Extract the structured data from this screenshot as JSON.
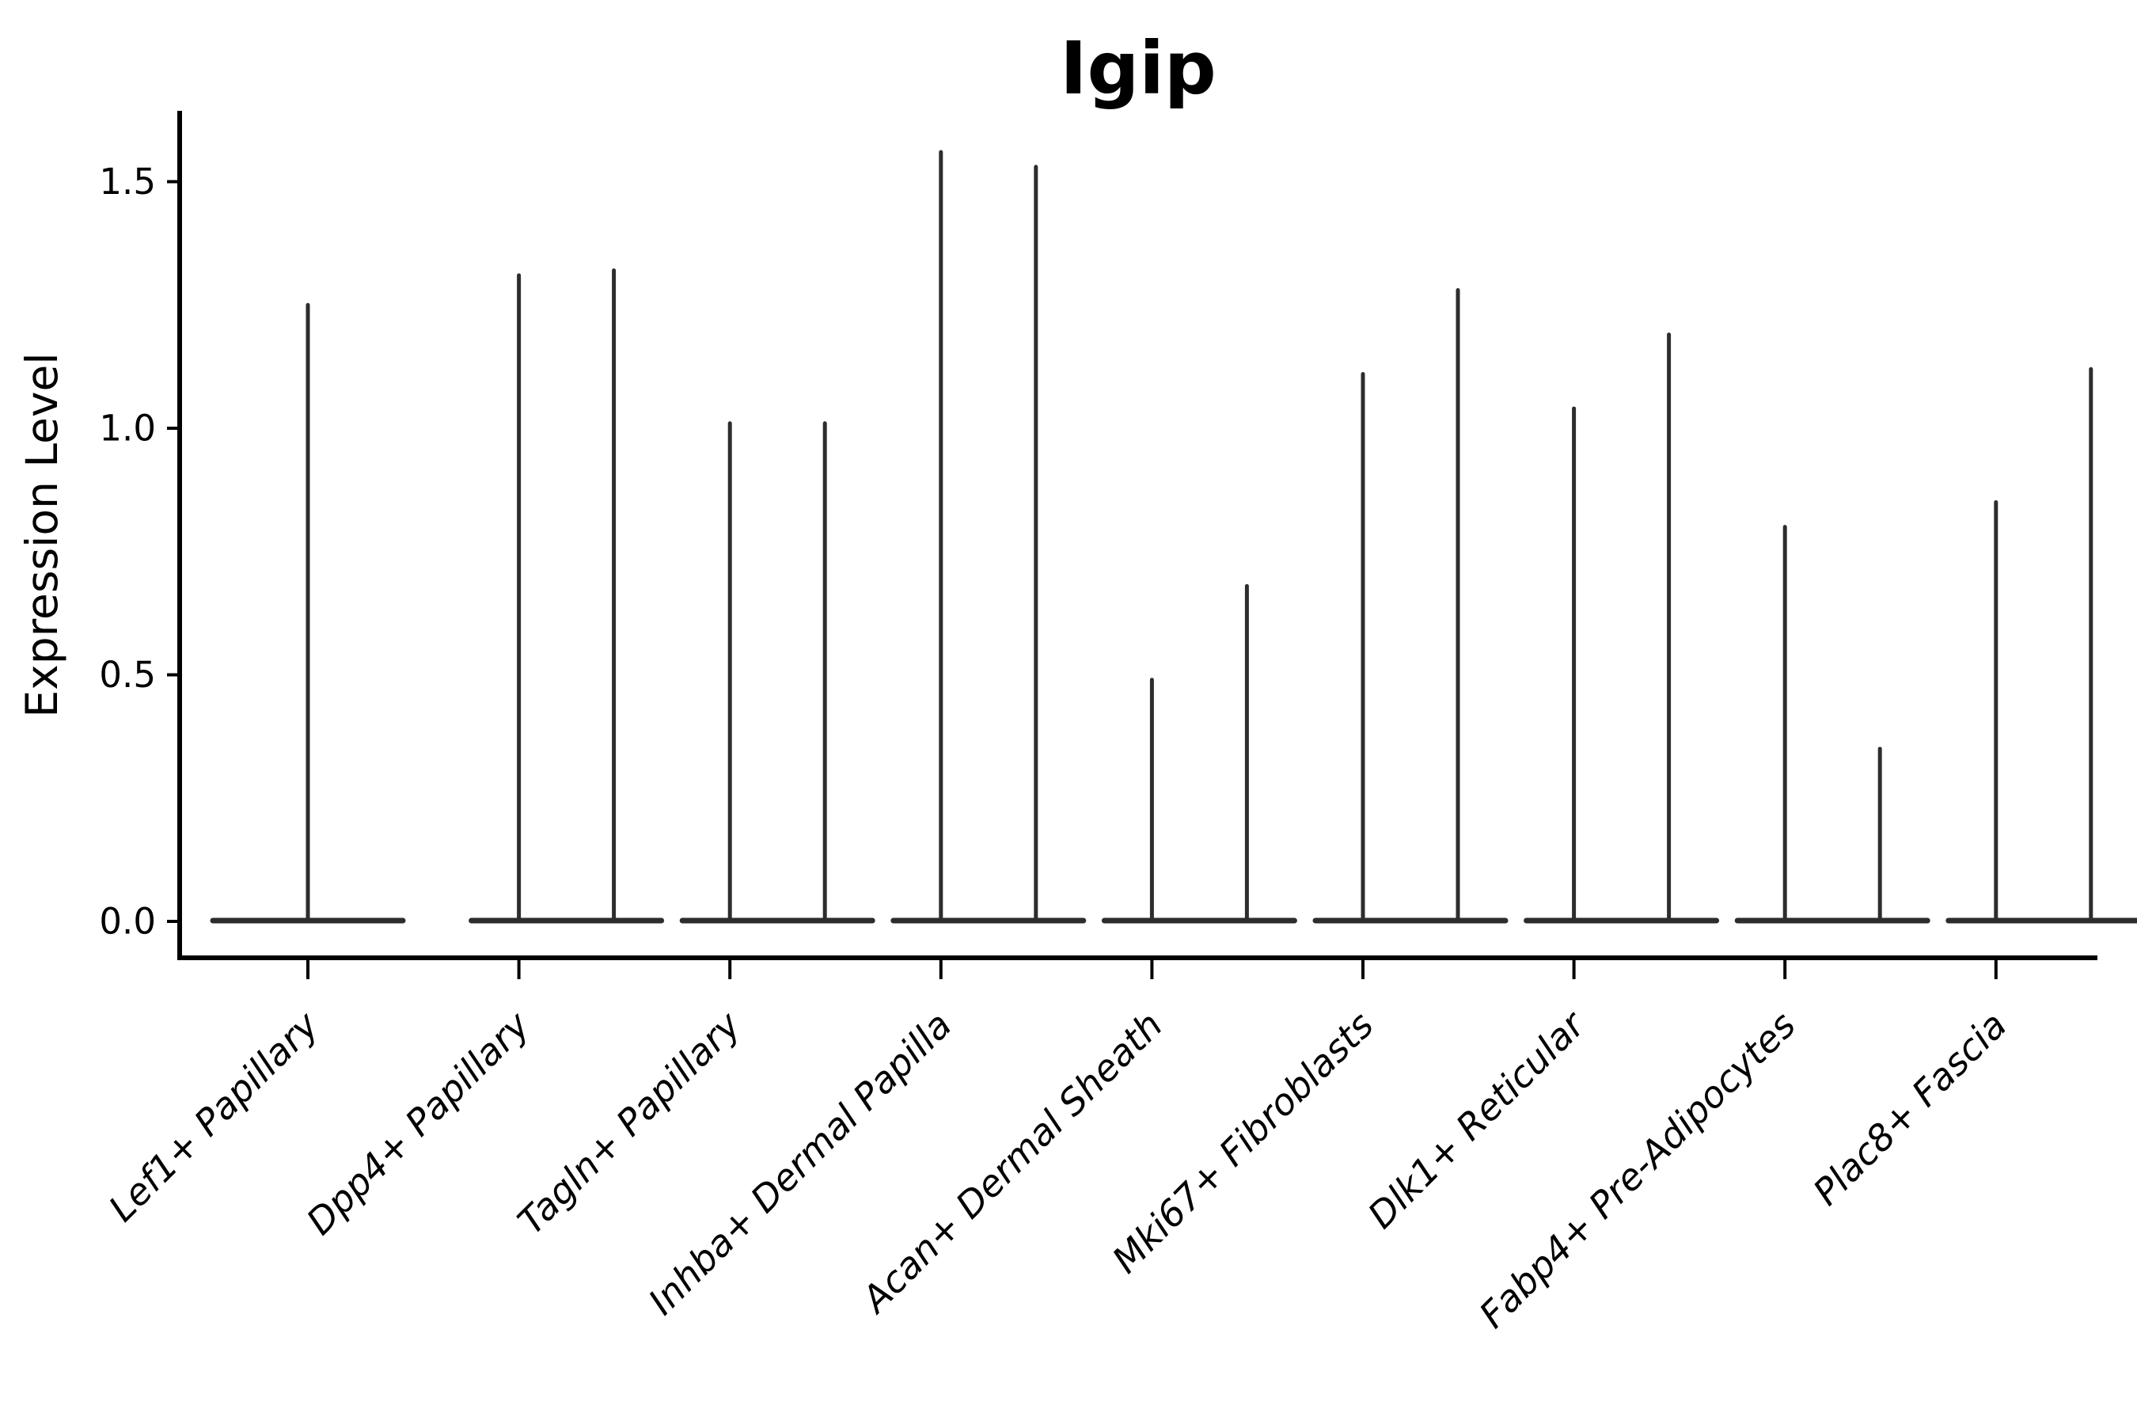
{
  "chart_data": {
    "type": "violin",
    "title": "Igip",
    "ylabel": "Expression Level",
    "xlabel": "",
    "ytick_values": [
      0.0,
      0.5,
      1.0,
      1.5
    ],
    "ytick_labels": [
      "0.0",
      "0.5",
      "1.0",
      "1.5"
    ],
    "ylim": [
      -0.08,
      1.64
    ],
    "grid": false,
    "legend": "none",
    "categories": [
      "Lef1+ Papillary",
      "Dpp4+ Papillary",
      "Tagln+ Papillary",
      "Inhba+ Dermal Papilla",
      "Acan+ Dermal Sheath",
      "Mki67+ Fibroblasts",
      "Dlk1+ Reticular",
      "Fabp4+ Pre-Adipocytes",
      "Plac8+ Fascia"
    ],
    "series": [
      {
        "category": "Lef1+ Papillary",
        "violin_maxima": [
          1.25
        ],
        "baseline_value": 0.0
      },
      {
        "category": "Dpp4+ Papillary",
        "violin_maxima": [
          1.31,
          1.32
        ],
        "baseline_value": 0.0
      },
      {
        "category": "Tagln+ Papillary",
        "violin_maxima": [
          1.01,
          1.01
        ],
        "baseline_value": 0.0
      },
      {
        "category": "Inhba+ Dermal Papilla",
        "violin_maxima": [
          1.56,
          1.53
        ],
        "baseline_value": 0.0
      },
      {
        "category": "Acan+ Dermal Sheath",
        "violin_maxima": [
          0.49,
          0.68
        ],
        "baseline_value": 0.0
      },
      {
        "category": "Mki67+ Fibroblasts",
        "violin_maxima": [
          1.11,
          1.28
        ],
        "baseline_value": 0.0
      },
      {
        "category": "Dlk1+ Reticular",
        "violin_maxima": [
          1.04,
          1.19
        ],
        "baseline_value": 0.0
      },
      {
        "category": "Fabp4+ Pre-Adipocytes",
        "violin_maxima": [
          0.8,
          0.35
        ],
        "baseline_value": 0.0
      },
      {
        "category": "Plac8+ Fascia",
        "violin_maxima": [
          0.85,
          1.12
        ],
        "baseline_value": 0.0
      }
    ],
    "style": {
      "violin_stroke_color": "#2d2d2d",
      "axis_color": "#000000",
      "background_color": "#ffffff",
      "x_label_rotation_deg": 45,
      "x_labels_italic": true
    }
  }
}
